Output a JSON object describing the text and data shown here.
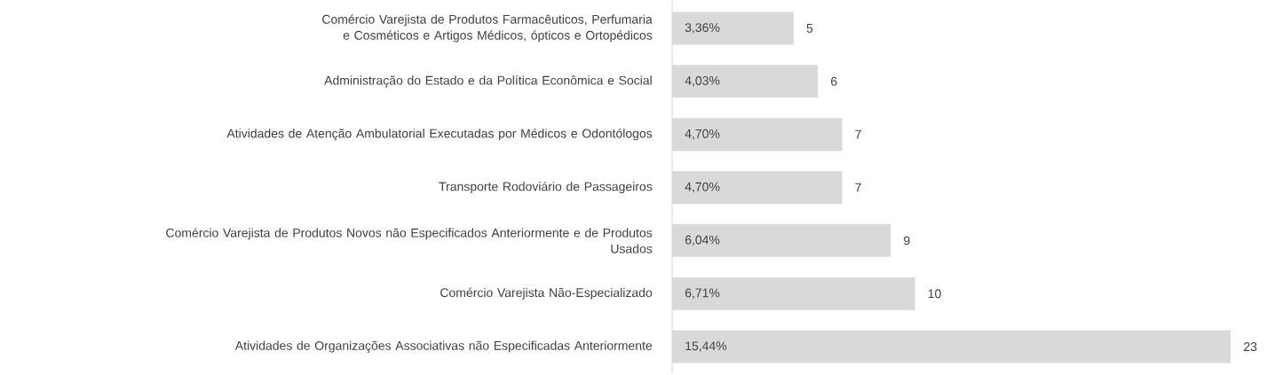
{
  "chart_data": {
    "type": "bar",
    "orientation": "horizontal",
    "categories": [
      "Comércio Varejista de Produtos Farmacêuticos, Perfumaria e Cosméticos e Artigos Médicos, ópticos e Ortopédicos",
      "Administração do Estado e da Política Econômica e Social",
      "Atividades de Atenção Ambulatorial Executadas por Médicos e Odontólogos",
      "Transporte Rodoviário de Passageiros",
      "Comércio Varejista de Produtos Novos não Especificados Anteriormente e de Produtos Usados",
      "Comércio Varejista Não-Especializado",
      "Atividades de Organizações Associativas não Especificadas Anteriormente"
    ],
    "values": [
      5,
      6,
      7,
      7,
      9,
      10,
      23
    ],
    "color": "#d9d9d9",
    "data_labels": true,
    "annotations": [
      "3,36%",
      "4,03%",
      "4,70%",
      "4,70%",
      "6,04%",
      "6,71%",
      "15,44%"
    ]
  }
}
